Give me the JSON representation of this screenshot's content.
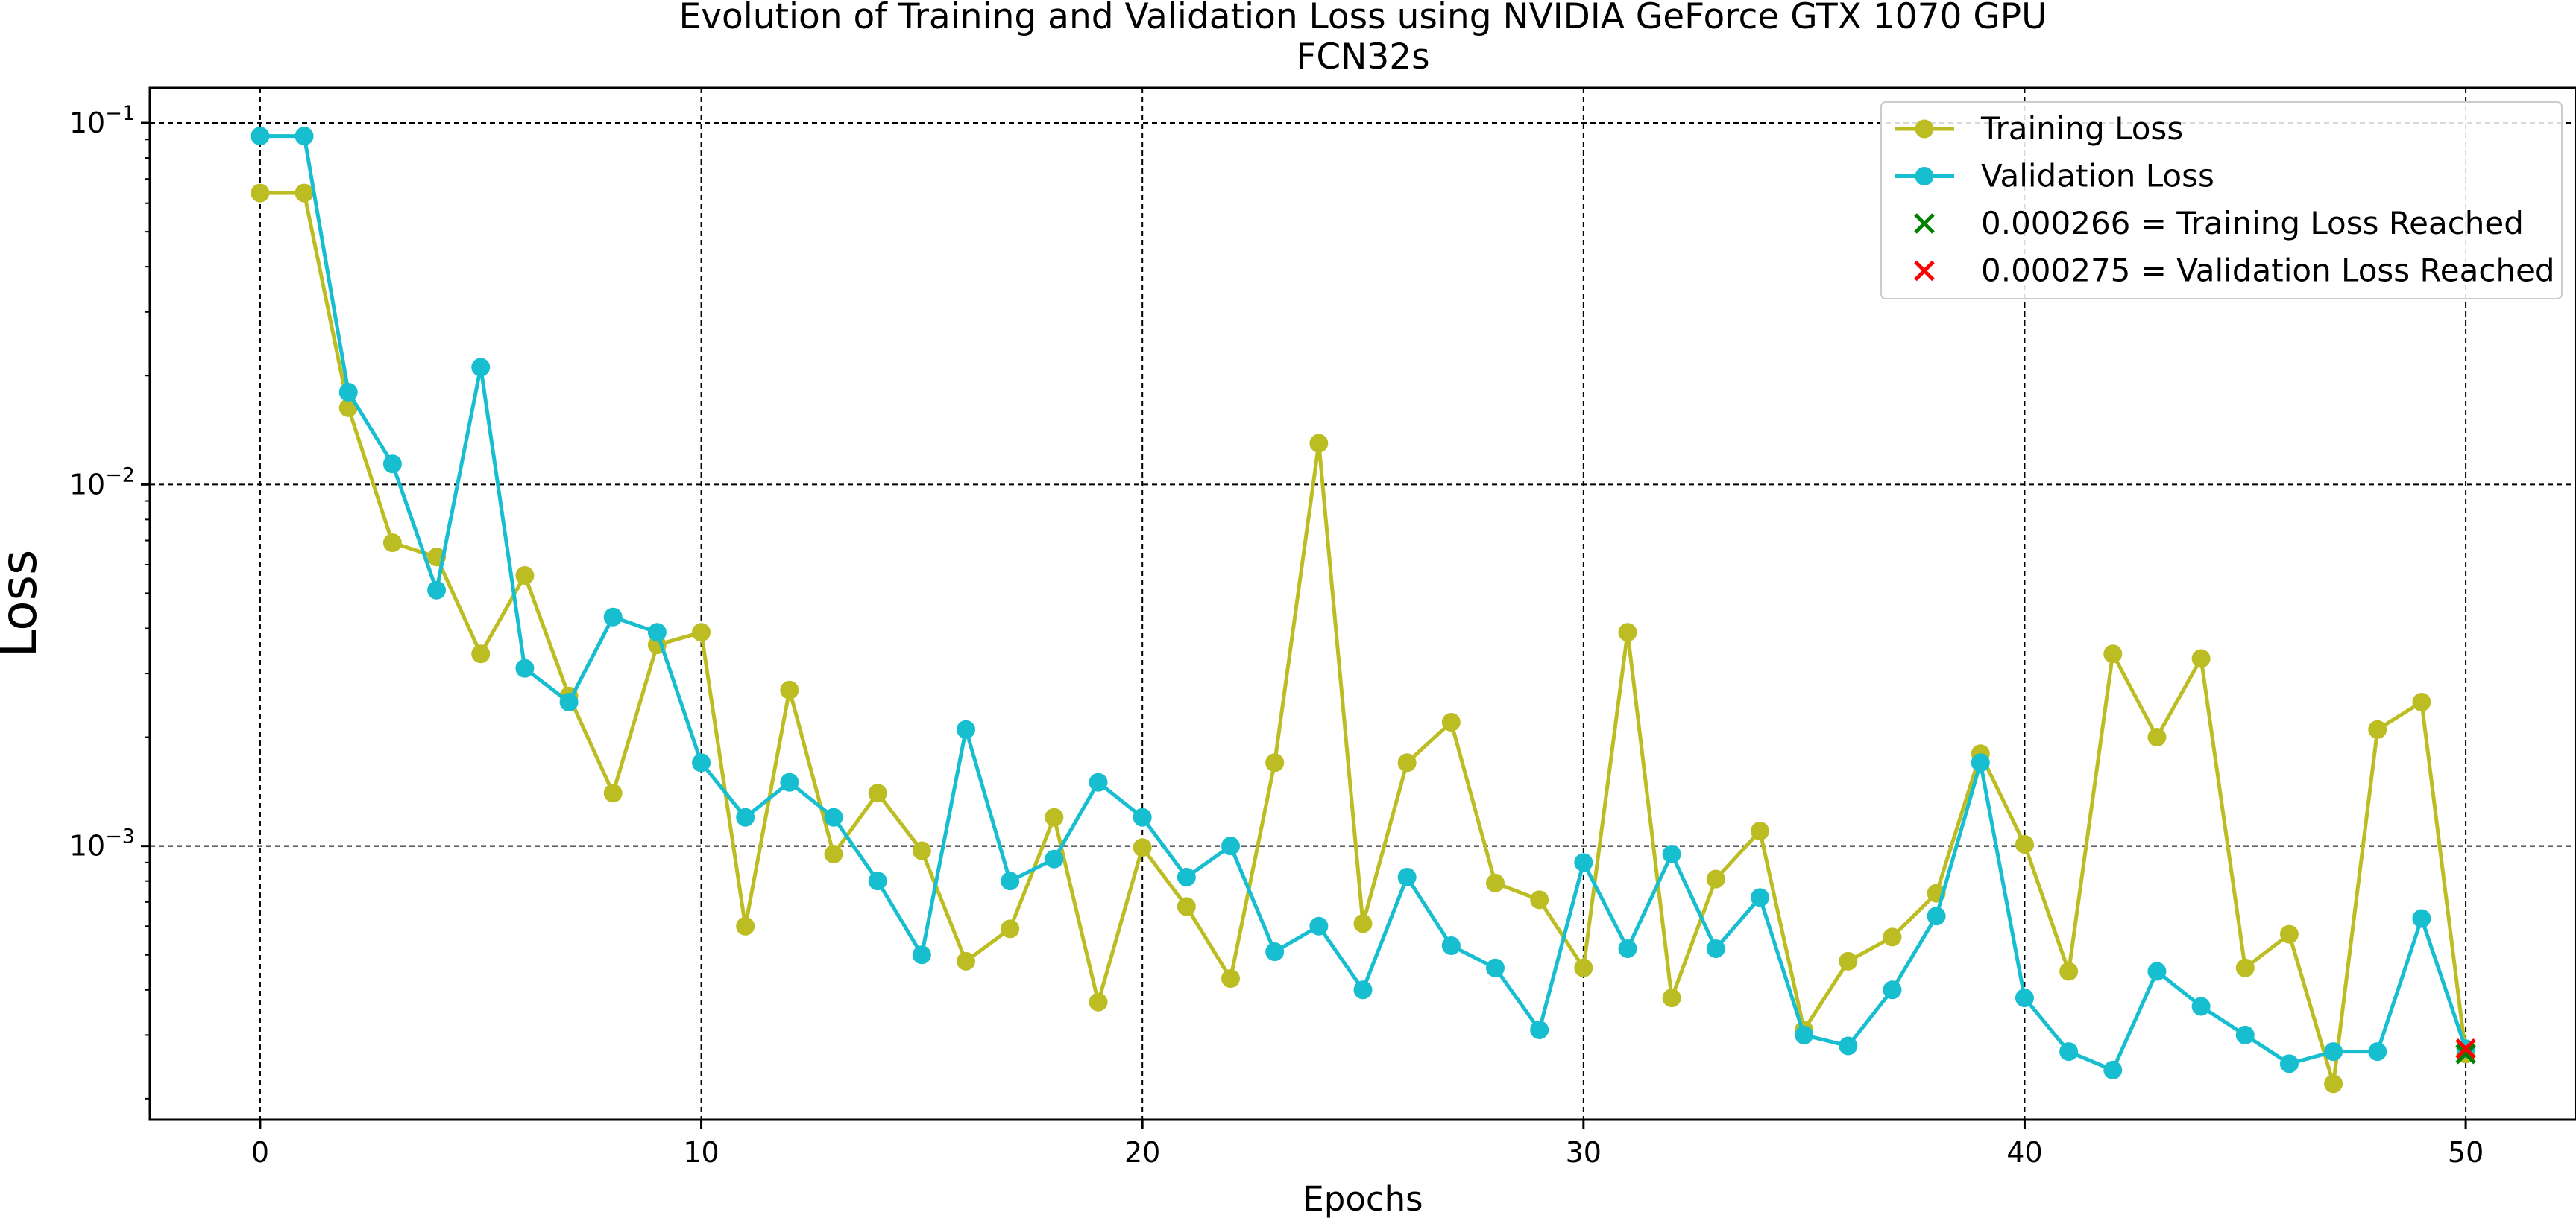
{
  "chart_data": {
    "type": "line",
    "title": "Evolution of Training and Validation Loss using NVIDIA GeForce GTX 1070 GPU",
    "subtitle": "FCN32s",
    "xlabel": "Epochs",
    "ylabel": "Loss",
    "xlim": [
      -2.5,
      52.5
    ],
    "ylim": [
      0.000175,
      0.125
    ],
    "yscale": "log",
    "grid": true,
    "legend_position": "top-right",
    "x_ticks": [
      0,
      10,
      20,
      30,
      40,
      50
    ],
    "x_tick_labels": [
      "0",
      "10",
      "20",
      "30",
      "40",
      "50"
    ],
    "y_ticks": [
      0.1,
      0.01,
      0.001
    ],
    "y_tick_labels": [
      {
        "base": "10",
        "exp": "−1"
      },
      {
        "base": "10",
        "exp": "−2"
      },
      {
        "base": "10",
        "exp": "−3"
      }
    ],
    "x": [
      0,
      1,
      2,
      3,
      4,
      5,
      6,
      7,
      8,
      9,
      10,
      11,
      12,
      13,
      14,
      15,
      16,
      17,
      18,
      19,
      20,
      21,
      22,
      23,
      24,
      25,
      26,
      27,
      28,
      29,
      30,
      31,
      32,
      33,
      34,
      35,
      36,
      37,
      38,
      39,
      40,
      41,
      42,
      43,
      44,
      45,
      46,
      47,
      48,
      49,
      50
    ],
    "series": [
      {
        "name": "Training Loss",
        "color": "#bcbd22",
        "marker": "circle",
        "values": [
          0.064,
          0.064,
          0.0163,
          0.0069,
          0.0063,
          0.0034,
          0.0056,
          0.0026,
          0.0014,
          0.0036,
          0.0039,
          0.0006,
          0.0027,
          0.00095,
          0.0014,
          0.00097,
          0.00048,
          0.00059,
          0.0012,
          0.00037,
          0.00099,
          0.00068,
          0.00043,
          0.0017,
          0.013,
          0.00061,
          0.0017,
          0.0022,
          0.00079,
          0.00071,
          0.00046,
          0.0039,
          0.00038,
          0.00081,
          0.0011,
          0.00031,
          0.00048,
          0.00056,
          0.00074,
          0.0018,
          0.00101,
          0.00045,
          0.0034,
          0.002,
          0.0033,
          0.00046,
          0.00057,
          0.00022,
          0.0021,
          0.0025,
          0.000266
        ]
      },
      {
        "name": "Validation Loss",
        "color": "#17becf",
        "marker": "circle",
        "values": [
          0.092,
          0.092,
          0.018,
          0.0114,
          0.0051,
          0.0211,
          0.0031,
          0.0025,
          0.0043,
          0.0039,
          0.0017,
          0.0012,
          0.0015,
          0.0012,
          0.0008,
          0.0005,
          0.0021,
          0.0008,
          0.00092,
          0.0015,
          0.0012,
          0.00082,
          0.001,
          0.00051,
          0.0006,
          0.0004,
          0.00082,
          0.00053,
          0.00046,
          0.00031,
          0.0009,
          0.00052,
          0.00095,
          0.00052,
          0.00072,
          0.0003,
          0.00028,
          0.0004,
          0.00064,
          0.0017,
          0.00038,
          0.00027,
          0.00024,
          0.00045,
          0.00036,
          0.0003,
          0.00025,
          0.00027,
          0.00027,
          0.00063,
          0.000275
        ]
      }
    ],
    "markers": [
      {
        "label": "0.000266 = Training Loss Reached",
        "x": 50,
        "y": 0.000266,
        "color": "#008000",
        "marker": "x"
      },
      {
        "label": "0.000275 = Validation Loss Reached",
        "x": 50,
        "y": 0.000275,
        "color": "#ff0000",
        "marker": "x"
      }
    ]
  }
}
